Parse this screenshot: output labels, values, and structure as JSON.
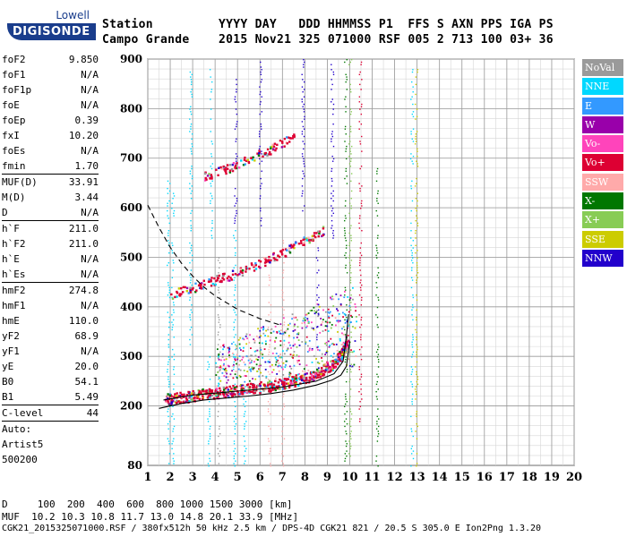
{
  "logo": {
    "line1": "Lowell",
    "line2": "DIGISONDE"
  },
  "header": {
    "row1": "Station         YYYY DAY   DDD HHMMSS P1  FFS S AXN PPS IGA PS",
    "row2": "Campo Grande    2015 Nov21 325 071000 RSF 005 2 713 100 03+ 36"
  },
  "params": [
    {
      "label": "foF2",
      "value": "9.850"
    },
    {
      "label": "foF1",
      "value": "N/A"
    },
    {
      "label": "foF1p",
      "value": "N/A"
    },
    {
      "label": "foE",
      "value": "N/A"
    },
    {
      "label": "foEp",
      "value": "0.39"
    },
    {
      "label": "fxI",
      "value": "10.20"
    },
    {
      "label": "foEs",
      "value": "N/A"
    },
    {
      "label": "fmin",
      "value": "1.70"
    },
    {
      "sep": true
    },
    {
      "label": "MUF(D)",
      "value": "33.91"
    },
    {
      "label": "M(D)",
      "value": "3.44"
    },
    {
      "label": "D",
      "value": "N/A"
    },
    {
      "sep": true
    },
    {
      "label": "h`F",
      "value": "211.0"
    },
    {
      "label": "h`F2",
      "value": "211.0"
    },
    {
      "label": "h`E",
      "value": "N/A"
    },
    {
      "label": "h`Es",
      "value": "N/A"
    },
    {
      "sep": true
    },
    {
      "label": "hmF2",
      "value": "274.8"
    },
    {
      "label": "hmF1",
      "value": "N/A"
    },
    {
      "label": "hmE",
      "value": "110.0"
    },
    {
      "label": "yF2",
      "value": "68.9"
    },
    {
      "label": "yF1",
      "value": "N/A"
    },
    {
      "label": "yE",
      "value": "20.0"
    },
    {
      "label": "B0",
      "value": "54.1"
    },
    {
      "label": "B1",
      "value": "5.49"
    },
    {
      "sep": true
    },
    {
      "label": "C-level",
      "value": "44"
    },
    {
      "sep": true
    },
    {
      "free": "Auto:"
    },
    {
      "free": "Artist5"
    },
    {
      "free": "500200"
    }
  ],
  "legend": [
    {
      "label": "NoVal",
      "color": "#9a9a9a"
    },
    {
      "label": "NNE",
      "color": "#00d8ff"
    },
    {
      "label": "E",
      "color": "#3399ff"
    },
    {
      "label": "W",
      "color": "#9900aa"
    },
    {
      "label": "Vo-",
      "color": "#ff44bb"
    },
    {
      "label": "Vo+",
      "color": "#dd0033"
    },
    {
      "label": "SSW",
      "color": "#ffaaaa"
    },
    {
      "label": "X-",
      "color": "#007700"
    },
    {
      "label": "X+",
      "color": "#88cc55"
    },
    {
      "label": "SSE",
      "color": "#cccc00"
    },
    {
      "label": "NNW",
      "color": "#2200cc"
    }
  ],
  "footer": {
    "line1": "D     100  200  400  600  800 1000 1500 3000 [km]",
    "line2": "MUF  10.2 10.3 10.8 11.7 13.0 14.8 20.1 33.9 [MHz]",
    "line3": "CGK21_2015325071000.RSF / 380fx512h 50 kHz 2.5 km / DPS-4D CGK21 821 / 20.5 S 305.0 E Ion2Png 1.3.20"
  },
  "chart_data": {
    "type": "scatter",
    "xlim": [
      1,
      20
    ],
    "ylim": [
      80,
      900
    ],
    "x_ticks": [
      1,
      2,
      3,
      4,
      5,
      6,
      7,
      8,
      9,
      10,
      11,
      12,
      13,
      14,
      15,
      16,
      17,
      18,
      19,
      20
    ],
    "y_ticks": [
      200,
      300,
      400,
      500,
      600,
      700,
      800,
      900
    ],
    "y_ticks_extra": [
      80
    ],
    "grid": true,
    "legend_position": "right",
    "traces": [
      {
        "name": "O-mode F2 trace",
        "color": "#dd0033",
        "points": [
          [
            1.7,
            215
          ],
          [
            2.5,
            218
          ],
          [
            3.5,
            225
          ],
          [
            4.5,
            230
          ],
          [
            5.5,
            236
          ],
          [
            6.5,
            242
          ],
          [
            7.5,
            252
          ],
          [
            8.5,
            265
          ],
          [
            9.2,
            285
          ],
          [
            9.6,
            305
          ],
          [
            9.85,
            330
          ]
        ]
      },
      {
        "name": "second hop",
        "color": "#dd0033",
        "points": [
          [
            2,
            425
          ],
          [
            3,
            440
          ],
          [
            4,
            455
          ],
          [
            5,
            470
          ],
          [
            6,
            490
          ],
          [
            7,
            510
          ],
          [
            8,
            535
          ],
          [
            8.8,
            555
          ]
        ]
      },
      {
        "name": "third hop",
        "color": "#dd0033",
        "points": [
          [
            3.5,
            665
          ],
          [
            4.5,
            680
          ],
          [
            5.5,
            700
          ],
          [
            6.5,
            720
          ],
          [
            7.5,
            745
          ]
        ]
      }
    ],
    "curves": [
      {
        "name": "profile",
        "style": "solid",
        "points": [
          [
            1.5,
            195
          ],
          [
            2.5,
            205
          ],
          [
            3.5,
            212
          ],
          [
            4.5,
            216
          ],
          [
            5.5,
            220
          ],
          [
            6.5,
            225
          ],
          [
            7.5,
            232
          ],
          [
            8.5,
            242
          ],
          [
            9.2,
            252
          ],
          [
            9.6,
            262
          ],
          [
            9.85,
            280
          ],
          [
            10.0,
            330
          ]
        ]
      },
      {
        "name": "profile-inner",
        "style": "solid",
        "points": [
          [
            1.7,
            212
          ],
          [
            3,
            222
          ],
          [
            5,
            230
          ],
          [
            7,
            238
          ],
          [
            8.5,
            250
          ],
          [
            9.3,
            265
          ],
          [
            9.7,
            290
          ],
          [
            9.85,
            340
          ],
          [
            9.95,
            385
          ]
        ]
      },
      {
        "name": "MUF",
        "style": "dashed",
        "points": [
          [
            1.0,
            605
          ],
          [
            1.5,
            560
          ],
          [
            2.0,
            520
          ],
          [
            2.5,
            488
          ],
          [
            3.0,
            462
          ],
          [
            3.5,
            440
          ],
          [
            4.0,
            422
          ],
          [
            5.0,
            395
          ],
          [
            6.0,
            376
          ],
          [
            7.0,
            362
          ]
        ]
      }
    ]
  }
}
